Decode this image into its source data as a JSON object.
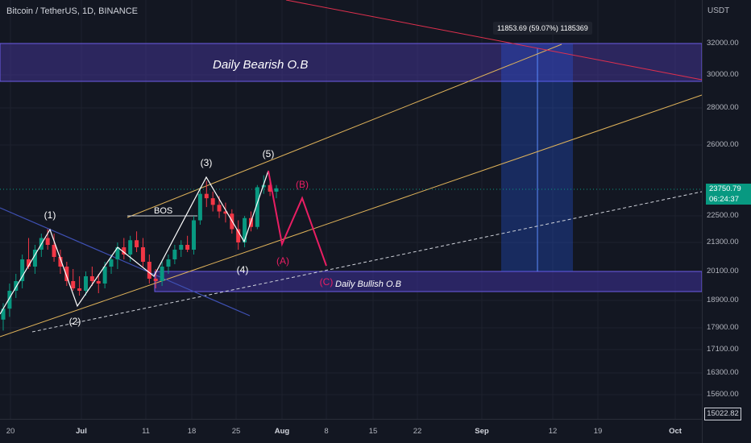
{
  "header": {
    "symbol_title": "Bitcoin / TetherUS, 1D, BINANCE"
  },
  "price_axis": {
    "currency": "USDT",
    "labels": [
      "32000.00",
      "30000.00",
      "28000.00",
      "26000.00",
      "22500.00",
      "21300.00",
      "20100.00",
      "18900.00",
      "17900.00",
      "17100.00",
      "16300.00",
      "15600.00"
    ],
    "current_price": "23750.79",
    "countdown": "06:24:37",
    "low_marker": "15022.82"
  },
  "time_axis": {
    "labels": [
      "20",
      "Jul",
      "11",
      "18",
      "25",
      "Aug",
      "8",
      "15",
      "22",
      "Sep",
      "12",
      "19",
      "Oct"
    ],
    "month_labels": [
      "Jul",
      "Aug",
      "Sep",
      "Oct"
    ]
  },
  "measure_tool": {
    "readout": "11853.69 (59.07%) 1185369"
  },
  "zones": {
    "bearish_label": "Daily Bearish O.B",
    "bullish_label": "Daily Bullish O.B"
  },
  "waves": {
    "w1": "(1)",
    "w2": "(2)",
    "w3": "(3)",
    "w4": "(4)",
    "w5": "(5)",
    "wA": "(A)",
    "wB": "(B)",
    "wC": "(C)"
  },
  "annotations": {
    "bos": "BOS"
  },
  "colors": {
    "background": "#131722",
    "bull_candle": "#089981",
    "bear_candle": "#f23645",
    "bearish_zone": "#4c3aa8",
    "bullish_zone": "#3b2f8f",
    "channel": "#e0b35a",
    "projection": "#e91e63",
    "measure_box": "#2962ff"
  },
  "chart_data": {
    "type": "candlestick",
    "candles": [
      {
        "o": 18200,
        "h": 18800,
        "l": 17800,
        "c": 18600
      },
      {
        "o": 18600,
        "h": 19600,
        "l": 18300,
        "c": 19300
      },
      {
        "o": 19300,
        "h": 20000,
        "l": 19000,
        "c": 19700
      },
      {
        "o": 19700,
        "h": 20800,
        "l": 19400,
        "c": 20600
      },
      {
        "o": 20600,
        "h": 21500,
        "l": 20200,
        "c": 20300
      },
      {
        "o": 20300,
        "h": 21200,
        "l": 20000,
        "c": 21000
      },
      {
        "o": 21000,
        "h": 21700,
        "l": 20700,
        "c": 21500
      },
      {
        "o": 21500,
        "h": 21900,
        "l": 21000,
        "c": 21200
      },
      {
        "o": 21200,
        "h": 21700,
        "l": 20500,
        "c": 20700
      },
      {
        "o": 20700,
        "h": 21000,
        "l": 20000,
        "c": 20300
      },
      {
        "o": 20300,
        "h": 20500,
        "l": 19500,
        "c": 19700
      },
      {
        "o": 19700,
        "h": 20200,
        "l": 19300,
        "c": 19400
      },
      {
        "o": 19400,
        "h": 19900,
        "l": 19100,
        "c": 19300
      },
      {
        "o": 19300,
        "h": 20100,
        "l": 19100,
        "c": 19900
      },
      {
        "o": 19900,
        "h": 20300,
        "l": 19500,
        "c": 19700
      },
      {
        "o": 19700,
        "h": 20000,
        "l": 19200,
        "c": 19600
      },
      {
        "o": 19600,
        "h": 20500,
        "l": 19400,
        "c": 20300
      },
      {
        "o": 20300,
        "h": 20800,
        "l": 20000,
        "c": 20600
      },
      {
        "o": 20600,
        "h": 21300,
        "l": 20200,
        "c": 21100
      },
      {
        "o": 21100,
        "h": 21500,
        "l": 20600,
        "c": 20800
      },
      {
        "o": 20800,
        "h": 21600,
        "l": 20500,
        "c": 21400
      },
      {
        "o": 21400,
        "h": 21800,
        "l": 20900,
        "c": 21100
      },
      {
        "o": 21100,
        "h": 21500,
        "l": 20300,
        "c": 20500
      },
      {
        "o": 20500,
        "h": 20800,
        "l": 19600,
        "c": 19800
      },
      {
        "o": 19800,
        "h": 20200,
        "l": 19400,
        "c": 19700
      },
      {
        "o": 19700,
        "h": 20500,
        "l": 19500,
        "c": 20300
      },
      {
        "o": 20300,
        "h": 20800,
        "l": 20000,
        "c": 20600
      },
      {
        "o": 20600,
        "h": 21200,
        "l": 20400,
        "c": 21000
      },
      {
        "o": 21000,
        "h": 21400,
        "l": 20700,
        "c": 21200
      },
      {
        "o": 21200,
        "h": 21600,
        "l": 20900,
        "c": 21000
      },
      {
        "o": 21000,
        "h": 22500,
        "l": 20800,
        "c": 22300
      },
      {
        "o": 22300,
        "h": 23800,
        "l": 22100,
        "c": 23500
      },
      {
        "o": 23500,
        "h": 24100,
        "l": 22900,
        "c": 23300
      },
      {
        "o": 23300,
        "h": 23600,
        "l": 22700,
        "c": 23000
      },
      {
        "o": 23000,
        "h": 23400,
        "l": 22400,
        "c": 22700
      },
      {
        "o": 22700,
        "h": 23100,
        "l": 22200,
        "c": 22600
      },
      {
        "o": 22600,
        "h": 22800,
        "l": 21700,
        "c": 21900
      },
      {
        "o": 21900,
        "h": 22300,
        "l": 21000,
        "c": 21300
      },
      {
        "o": 21300,
        "h": 22500,
        "l": 21100,
        "c": 22400
      },
      {
        "o": 22400,
        "h": 22700,
        "l": 21800,
        "c": 22000
      },
      {
        "o": 22000,
        "h": 23900,
        "l": 21900,
        "c": 23800
      },
      {
        "o": 23800,
        "h": 24400,
        "l": 23500,
        "c": 23900
      },
      {
        "o": 23900,
        "h": 24100,
        "l": 23400,
        "c": 23600
      },
      {
        "o": 23600,
        "h": 23900,
        "l": 23300,
        "c": 23750
      }
    ]
  }
}
